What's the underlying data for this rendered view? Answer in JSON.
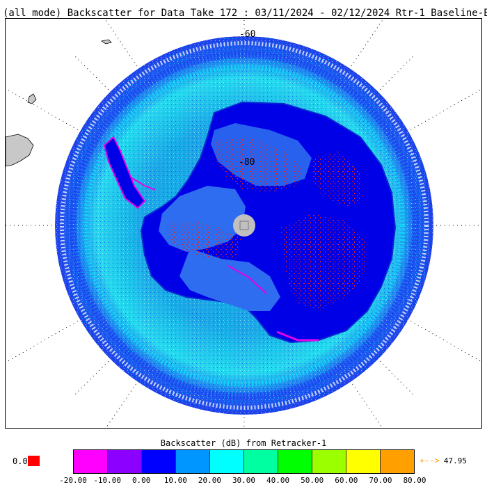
{
  "title": "(all mode) Backscatter for Data Take 172 : 03/11/2024 - 02/12/2024 Rtr-1 Baseline-E",
  "map": {
    "lat_labels": [
      "-60",
      "-80"
    ],
    "colors": {
      "land": "#c8c8c8",
      "ice_dark": "#0000e6",
      "ice_mid": "#2e6cf0",
      "ocean_light": "#00e6f0",
      "ocean_mid": "#0a9ae6",
      "high_red": "#e61e1e",
      "magenta": "#e600e6"
    }
  },
  "colorbar": {
    "title": "Backscatter (dB) from Retracker-1",
    "nodata_label": "0.0",
    "nodata_color": "#ff0000",
    "max_label": "47.95",
    "max_arrow": "+-->",
    "segments": [
      "#ff00ff",
      "#8c00ff",
      "#0000ff",
      "#0096ff",
      "#00ffff",
      "#00ffa0",
      "#00ff00",
      "#9cff00",
      "#ffff00",
      "#ffa000"
    ],
    "tick_labels": [
      "-20.00",
      "-10.00",
      "0.00",
      "10.00",
      "20.00",
      "30.00",
      "40.00",
      "50.00",
      "60.00",
      "70.00",
      "80.00"
    ]
  }
}
